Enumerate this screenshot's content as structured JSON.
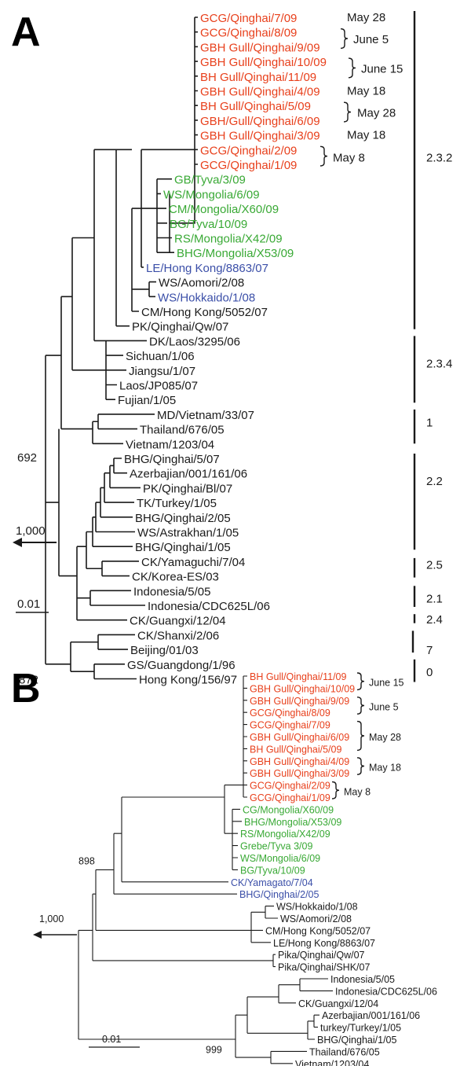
{
  "colors": {
    "red": "#e8401c",
    "green": "#39a935",
    "blue": "#3b4fa8",
    "black": "#1a1a1a"
  },
  "panelA": {
    "letter": "A",
    "taxa": [
      {
        "label": "GCG/Qinghai/7/09",
        "color": "red"
      },
      {
        "label": "GCG/Qinghai/8/09",
        "color": "red"
      },
      {
        "label": "GBH Gull/Qinghai/9/09",
        "color": "red"
      },
      {
        "label": "GBH Gull/Qinghai/10/09",
        "color": "red"
      },
      {
        "label": "BH Gull/Qinghai/11/09",
        "color": "red"
      },
      {
        "label": "GBH Gull/Qinghai/4/09",
        "color": "red"
      },
      {
        "label": "BH Gull/Qinghai/5/09",
        "color": "red"
      },
      {
        "label": "GBH/Gull/Qinghai/6/09",
        "color": "red"
      },
      {
        "label": "GBH Gull/Qinghai/3/09",
        "color": "red"
      },
      {
        "label": "GCG/Qinghai/2/09",
        "color": "red"
      },
      {
        "label": "GCG/Qinghai/1/09",
        "color": "red"
      },
      {
        "label": "GB/Tyva/3/09",
        "color": "green"
      },
      {
        "label": "WS/Mongolia/6/09",
        "color": "green"
      },
      {
        "label": "CM/Mongolia/X60/09",
        "color": "green"
      },
      {
        "label": "BG/Tyva/10/09",
        "color": "green"
      },
      {
        "label": "RS/Mongolia/X42/09",
        "color": "green"
      },
      {
        "label": "BHG/Mongolia/X53/09",
        "color": "green"
      },
      {
        "label": "LE/Hong Kong/8863/07",
        "color": "blue"
      },
      {
        "label": "WS/Aomori/2/08",
        "color": "black"
      },
      {
        "label": "WS/Hokkaido/1/08",
        "color": "blue"
      },
      {
        "label": "CM/Hong Kong/5052/07",
        "color": "black"
      },
      {
        "label": "PK/Qinghai/Qw/07",
        "color": "black"
      },
      {
        "label": "DK/Laos/3295/06",
        "color": "black"
      },
      {
        "label": "Sichuan/1/06",
        "color": "black"
      },
      {
        "label": "Jiangsu/1/07",
        "color": "black"
      },
      {
        "label": "Laos/JP085/07",
        "color": "black"
      },
      {
        "label": "Fujian/1/05",
        "color": "black"
      },
      {
        "label": "MD/Vietnam/33/07",
        "color": "black"
      },
      {
        "label": "Thailand/676/05",
        "color": "black"
      },
      {
        "label": "Vietnam/1203/04",
        "color": "black"
      },
      {
        "label": "BHG/Qinghai/5/07",
        "color": "black"
      },
      {
        "label": "Azerbajian/001/161/06",
        "color": "black"
      },
      {
        "label": "PK/Qinghai/Bl/07",
        "color": "black"
      },
      {
        "label": "TK/Turkey/1/05",
        "color": "black"
      },
      {
        "label": "BHG/Qinghai/2/05",
        "color": "black"
      },
      {
        "label": "WS/Astrakhan/1/05",
        "color": "black"
      },
      {
        "label": "BHG/Qinghai/1/05",
        "color": "black"
      },
      {
        "label": "CK/Yamaguchi/7/04",
        "color": "black"
      },
      {
        "label": "CK/Korea-ES/03",
        "color": "black"
      },
      {
        "label": "Indonesia/5/05",
        "color": "black"
      },
      {
        "label": "Indonesia/CDC625L/06",
        "color": "black"
      },
      {
        "label": "CK/Guangxi/12/04",
        "color": "black"
      },
      {
        "label": "CK/Shanxi/2/06",
        "color": "black"
      },
      {
        "label": "Beijing/01/03",
        "color": "black"
      },
      {
        "label": "GS/Guangdong/1/96",
        "color": "black"
      },
      {
        "label": "Hong Kong/156/97",
        "color": "black"
      }
    ],
    "dates": [
      "May 28",
      "June 5",
      "June 15",
      "May 18",
      "May 28",
      "May 18",
      "May 8"
    ],
    "clades": [
      "2.3.2",
      "2.3.4",
      "1",
      "2.2",
      "2.5",
      "2.1",
      "2.4",
      "7",
      "0"
    ],
    "bootstrap": [
      "692",
      "872"
    ],
    "root_label": "1,000",
    "scale_label": "0.01"
  },
  "panelB": {
    "letter": "B",
    "taxa": [
      {
        "label": "BH Gull/Qinghai/11/09",
        "color": "red"
      },
      {
        "label": "GBH Gull/Qinghai/10/09",
        "color": "red"
      },
      {
        "label": "GBH Gull/Qinghai/9/09",
        "color": "red"
      },
      {
        "label": "GCG/Qinghai/8/09",
        "color": "red"
      },
      {
        "label": "GCG/Qinghai/7/09",
        "color": "red"
      },
      {
        "label": "GBH Gull/Qinghai/6/09",
        "color": "red"
      },
      {
        "label": "BH Gull/Qinghai/5/09",
        "color": "red"
      },
      {
        "label": "GBH Gull/Qinghai/4/09",
        "color": "red"
      },
      {
        "label": "GBH Gull/Qinghai/3/09",
        "color": "red"
      },
      {
        "label": "GCG/Qinghai/2/09",
        "color": "red"
      },
      {
        "label": "GCG/Qinghai/1/09",
        "color": "red"
      },
      {
        "label": "CG/Mongolia/X60/09",
        "color": "green"
      },
      {
        "label": "BHG/Mongolia/X53/09",
        "color": "green"
      },
      {
        "label": "RS/Mongolia/X42/09",
        "color": "green"
      },
      {
        "label": "Grebe/Tyva 3/09",
        "color": "green"
      },
      {
        "label": "WS/Mongolia/6/09",
        "color": "green"
      },
      {
        "label": "BG/Tyva/10/09",
        "color": "green"
      },
      {
        "label": "CK/Yamagato/7/04",
        "color": "blue"
      },
      {
        "label": "BHG/Qinghai/2/05",
        "color": "blue"
      },
      {
        "label": "WS/Hokkaido/1/08",
        "color": "black"
      },
      {
        "label": "WS/Aomori/2/08",
        "color": "black"
      },
      {
        "label": "CM/Hong Kong/5052/07",
        "color": "black"
      },
      {
        "label": "LE/Hong Kong/8863/07",
        "color": "black"
      },
      {
        "label": "Pika/Qinghai/Qw/07",
        "color": "black"
      },
      {
        "label": "Pika/Qinghai/SHK/07",
        "color": "black"
      },
      {
        "label": "Indonesia/5/05",
        "color": "black"
      },
      {
        "label": "Indonesia/CDC625L/06",
        "color": "black"
      },
      {
        "label": "CK/Guangxi/12/04",
        "color": "black"
      },
      {
        "label": "Azerbajian/001/161/06",
        "color": "black"
      },
      {
        "label": "turkey/Turkey/1/05",
        "color": "black"
      },
      {
        "label": "BHG/Qinghai/1/05",
        "color": "black"
      },
      {
        "label": "Thailand/676/05",
        "color": "black"
      },
      {
        "label": "Vietnam/1203/04",
        "color": "black"
      }
    ],
    "dates": [
      "June 15",
      "June 5",
      "May 28",
      "May 18",
      "May 8"
    ],
    "bootstrap": [
      "898",
      "999"
    ],
    "root_label": "1,000",
    "scale_label": "0.01"
  }
}
